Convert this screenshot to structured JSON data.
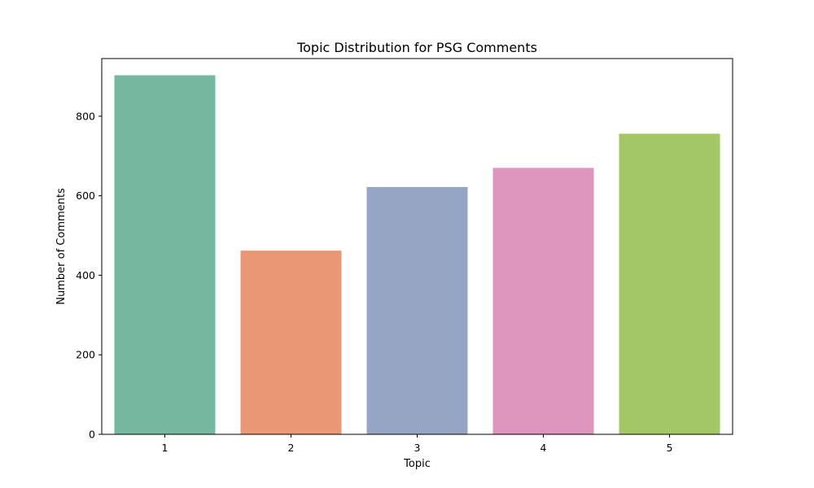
{
  "chart_data": {
    "type": "bar",
    "title": "Topic Distribution for PSG Comments",
    "xlabel": "Topic",
    "ylabel": "Number of Comments",
    "categories": [
      "1",
      "2",
      "3",
      "4",
      "5"
    ],
    "values": [
      903,
      462,
      622,
      670,
      756
    ],
    "colors": [
      "#76b7a0",
      "#e99775",
      "#96a5c3",
      "#dc95bd",
      "#a3c764"
    ],
    "ylim": [
      0,
      945
    ],
    "yticks": [
      0,
      200,
      400,
      600,
      800
    ],
    "grid": false,
    "legend": "none"
  }
}
